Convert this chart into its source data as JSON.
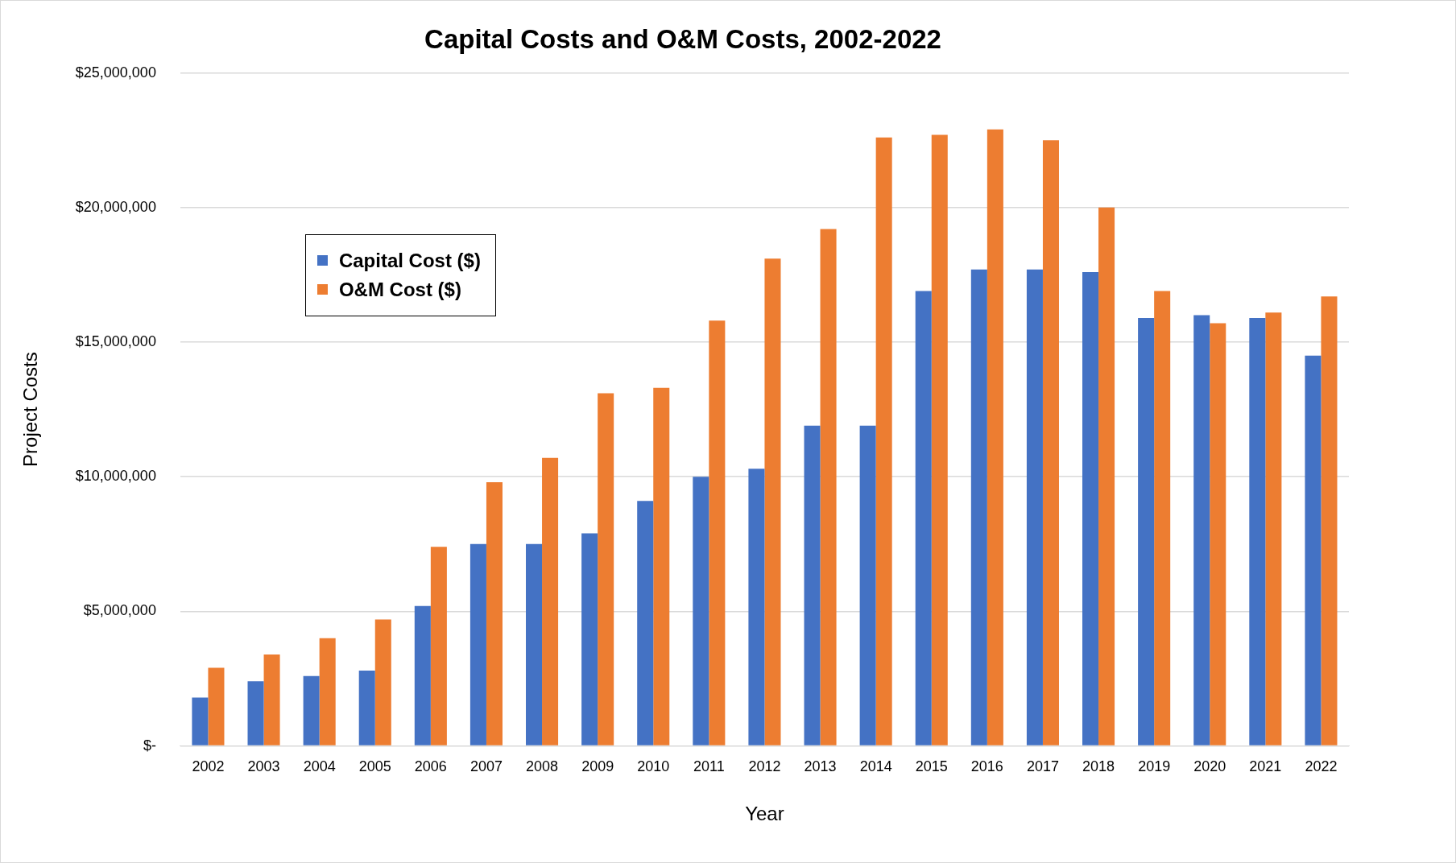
{
  "chart_data": {
    "type": "bar",
    "title": "Capital Costs and O&M Costs, 2002-2022",
    "xlabel": "Year",
    "ylabel": "Project Costs",
    "categories": [
      "2002",
      "2003",
      "2004",
      "2005",
      "2006",
      "2007",
      "2008",
      "2009",
      "2010",
      "2011",
      "2012",
      "2013",
      "2014",
      "2015",
      "2016",
      "2017",
      "2018",
      "2019",
      "2020",
      "2021",
      "2022"
    ],
    "series": [
      {
        "name": "Capital Cost ($)",
        "color": "#4472c4",
        "values": [
          1800000.0,
          2400000.0,
          2600000.0,
          2800000.0,
          5200000.0,
          7500000.0,
          7500000.0,
          7900000.0,
          9100000.0,
          10000000.0,
          10300000.0,
          11900000.0,
          11900000.0,
          16900000.0,
          17700000.0,
          17700000.0,
          17600000.0,
          15900000.0,
          16000000.0,
          15900000.0,
          14500000.0
        ]
      },
      {
        "name": "O&M Cost ($)",
        "color": "#ed7d31",
        "values": [
          2900000.0,
          3400000.0,
          4000000.0,
          4700000.0,
          7400000.0,
          9800000.0,
          10700000.0,
          13100000.0,
          13300000.0,
          15800000.0,
          18100000.0,
          19200000.0,
          22600000.0,
          22700000.0,
          22900000.0,
          22500000.0,
          20000000.0,
          16900000.0,
          15700000.0,
          16100000.0,
          16700000.0
        ]
      }
    ],
    "ylim": [
      0,
      25000000
    ],
    "yticks": [
      {
        "value": 0,
        "label": "$-"
      },
      {
        "value": 5000000,
        "label": "$5,000,000"
      },
      {
        "value": 10000000,
        "label": "$10,000,000"
      },
      {
        "value": 15000000,
        "label": "$15,000,000"
      },
      {
        "value": 20000000,
        "label": "$20,000,000"
      },
      {
        "value": 25000000,
        "label": "$25,000,000"
      }
    ],
    "grid": "y",
    "legend": "top left"
  }
}
